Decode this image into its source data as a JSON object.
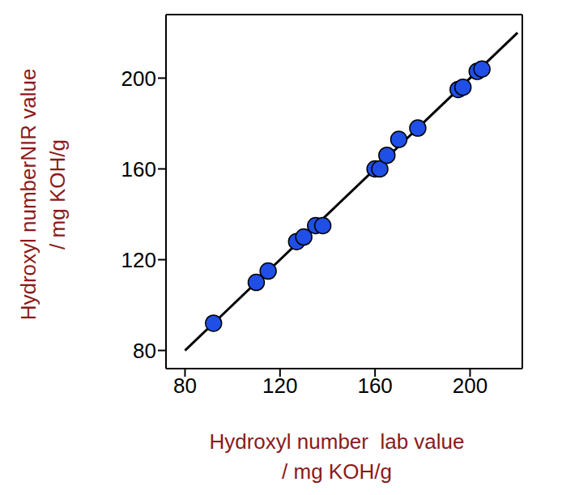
{
  "chart_data": {
    "type": "scatter",
    "x_label": [
      "Hydroxyl number  lab value",
      "/ mg KOH/g"
    ],
    "y_label": [
      "Hydroxyl numberNIR value",
      "/ mg KOH/g"
    ],
    "x": [
      92,
      110,
      115,
      127,
      130,
      135,
      138,
      160,
      162,
      165,
      170,
      178,
      195,
      197,
      203,
      205
    ],
    "values": [
      92,
      110,
      115,
      128,
      130,
      135,
      135,
      160,
      160,
      166,
      173,
      178,
      195,
      196,
      203,
      204
    ],
    "color": "#1f4fe6",
    "marker": "circle",
    "fit_line": {
      "x": [
        80,
        220
      ],
      "y": [
        80,
        220
      ]
    },
    "xlim": [
      72,
      222
    ],
    "ylim": [
      72,
      228
    ],
    "xticks": [
      80,
      120,
      160,
      200
    ],
    "yticks": [
      80,
      120,
      160,
      200
    ],
    "grid": false
  }
}
